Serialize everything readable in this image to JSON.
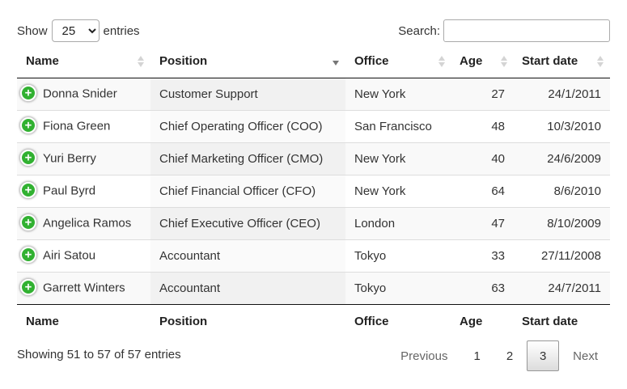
{
  "length_menu": {
    "show_label": "Show",
    "selected": "25",
    "entries_label": "entries"
  },
  "search": {
    "label": "Search:",
    "value": ""
  },
  "columns": [
    "Name",
    "Position",
    "Office",
    "Age",
    "Start date"
  ],
  "sorted_column": "Position",
  "rows": [
    {
      "name": "Donna Snider",
      "position": "Customer Support",
      "office": "New York",
      "age": "27",
      "start": "24/1/2011"
    },
    {
      "name": "Fiona Green",
      "position": "Chief Operating Officer (COO)",
      "office": "San Francisco",
      "age": "48",
      "start": "10/3/2010"
    },
    {
      "name": "Yuri Berry",
      "position": "Chief Marketing Officer (CMO)",
      "office": "New York",
      "age": "40",
      "start": "24/6/2009"
    },
    {
      "name": "Paul Byrd",
      "position": "Chief Financial Officer (CFO)",
      "office": "New York",
      "age": "64",
      "start": "8/6/2010"
    },
    {
      "name": "Angelica Ramos",
      "position": "Chief Executive Officer (CEO)",
      "office": "London",
      "age": "47",
      "start": "8/10/2009"
    },
    {
      "name": "Airi Satou",
      "position": "Accountant",
      "office": "Tokyo",
      "age": "33",
      "start": "27/11/2008"
    },
    {
      "name": "Garrett Winters",
      "position": "Accountant",
      "office": "Tokyo",
      "age": "63",
      "start": "24/7/2011"
    }
  ],
  "control_icon": "plus-icon",
  "control_color": "#31b131",
  "info": "Showing 51 to 57 of 57 entries",
  "pagination": {
    "previous": "Previous",
    "pages": [
      "1",
      "2",
      "3"
    ],
    "current": "3",
    "next": "Next"
  }
}
